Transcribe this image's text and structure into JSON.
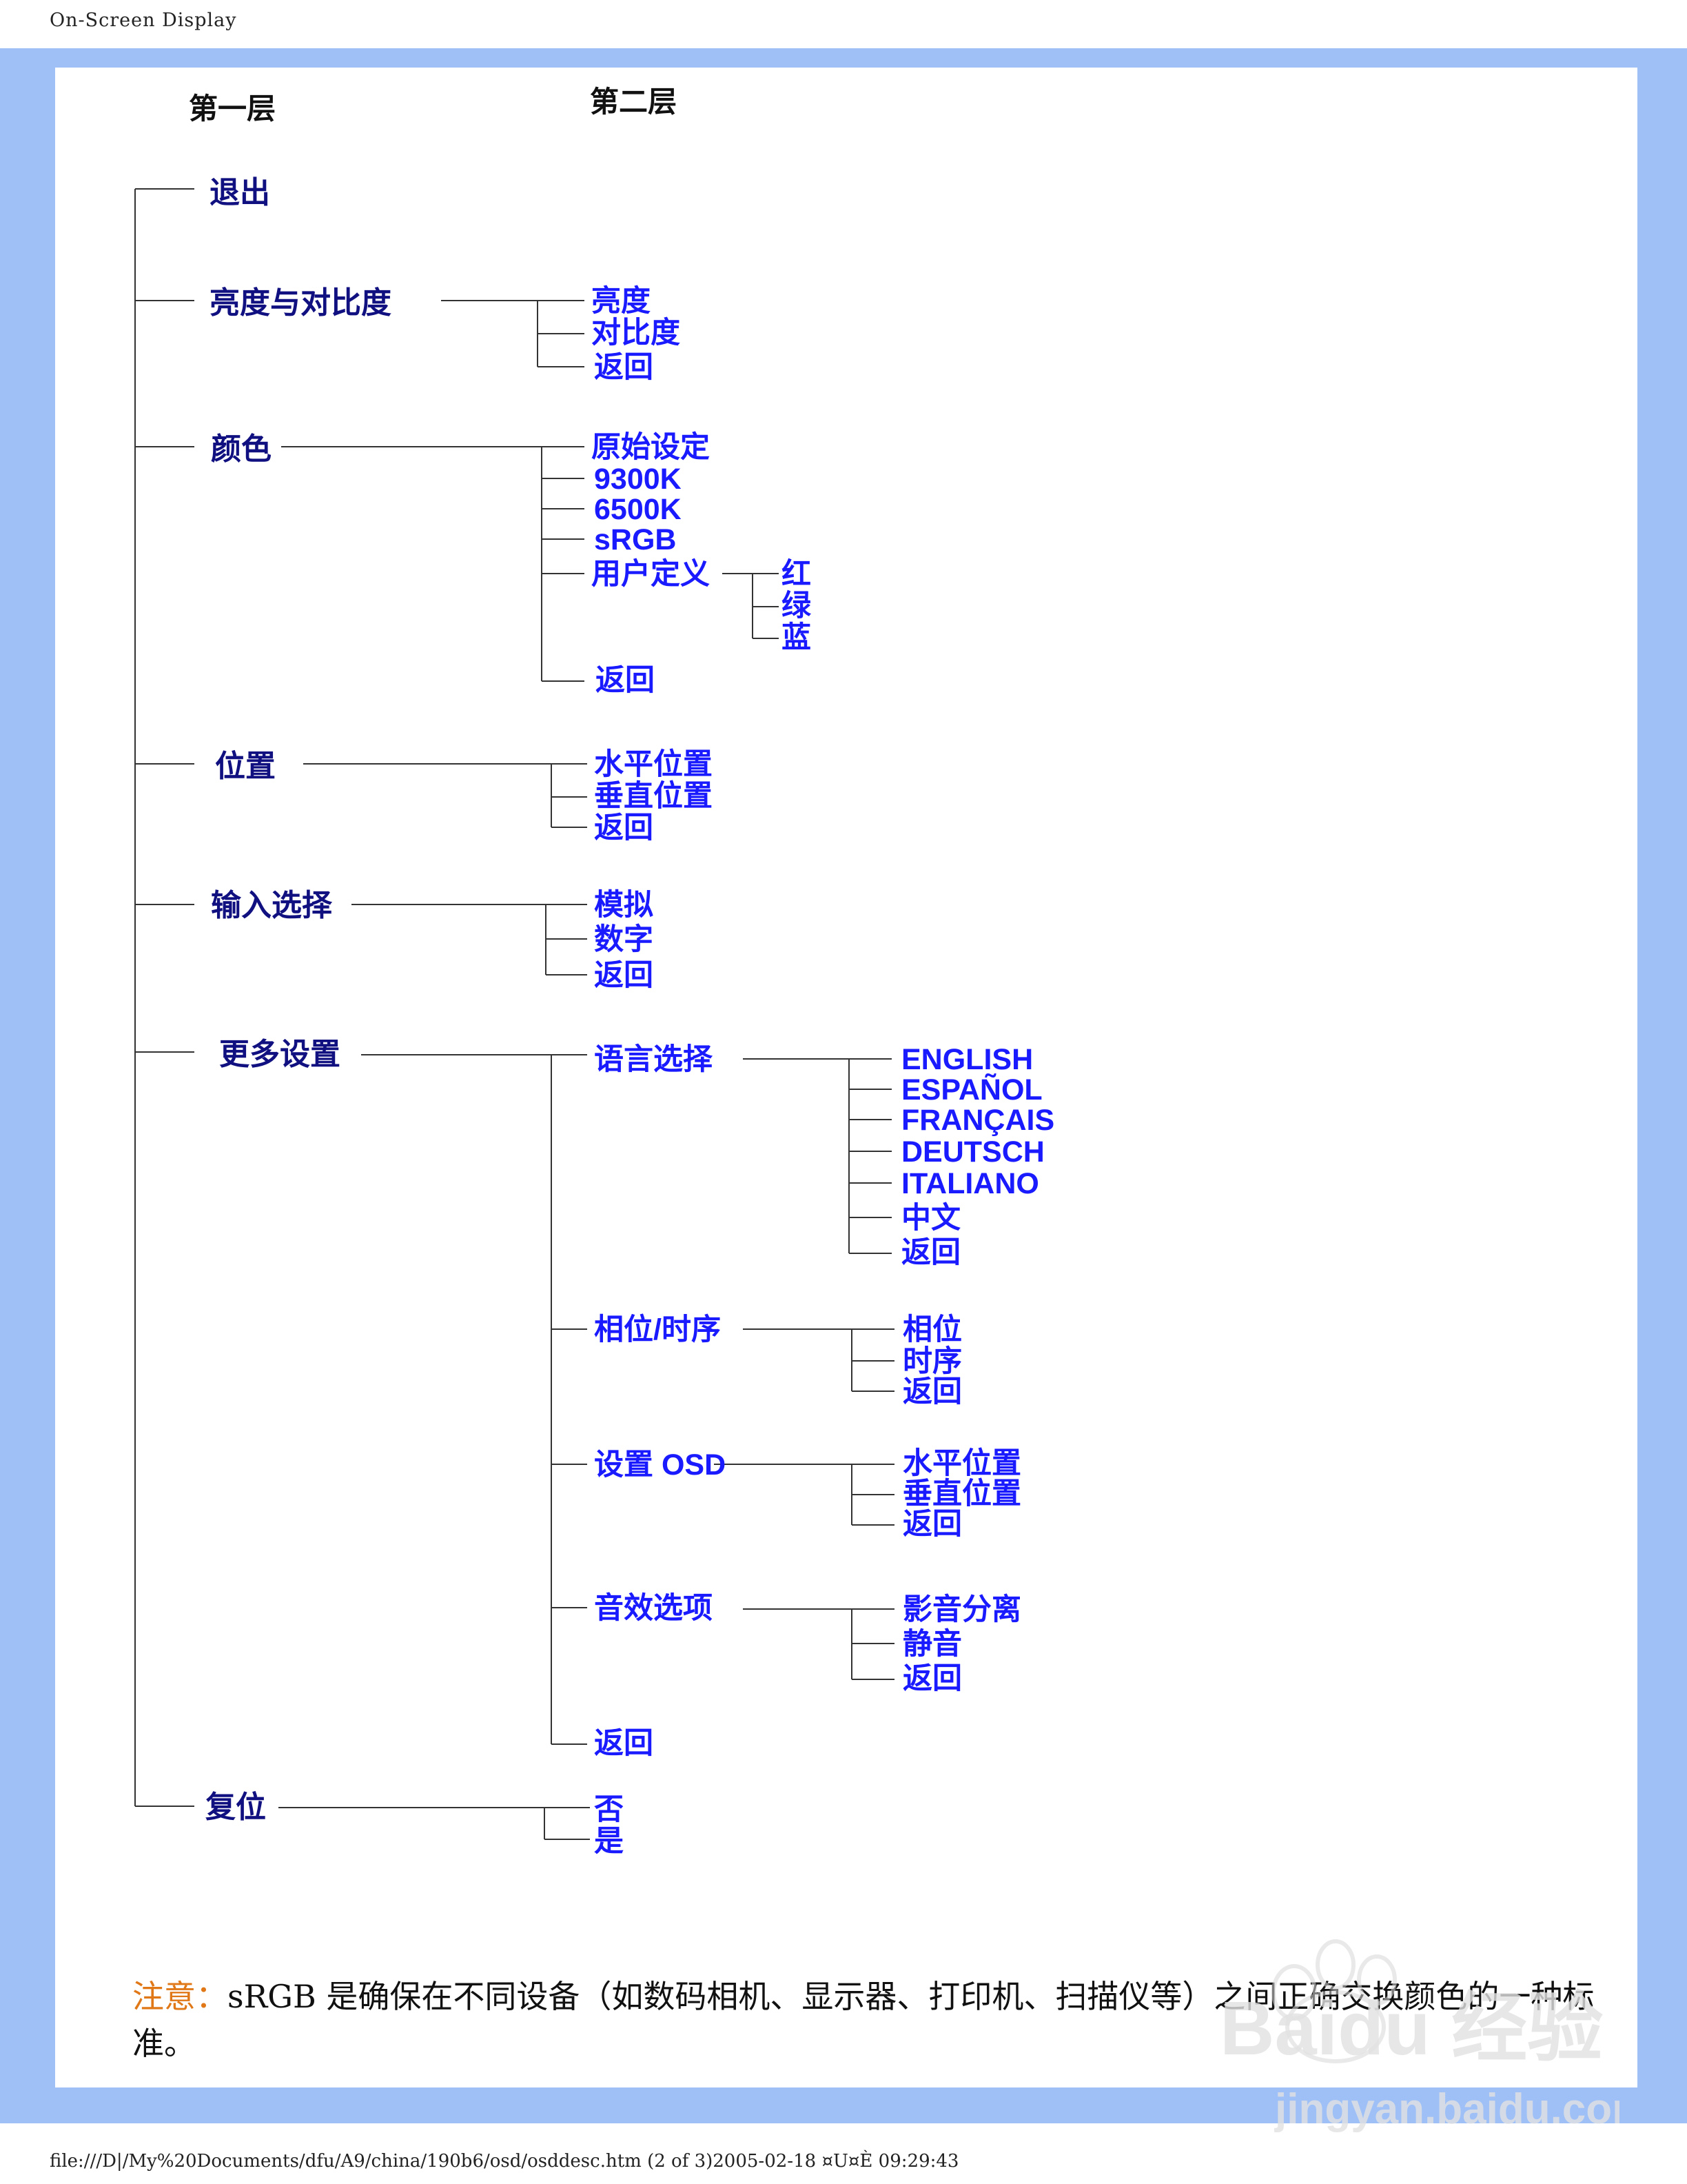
{
  "page": {
    "header": "On-Screen Display",
    "footer": "file:///D|/My%20Documents/dfu/A9/china/190b6/osd/osddesc.htm (2 of 3)2005-02-18 ¤U¤È 09:29:43"
  },
  "columns": {
    "level1": "第一层",
    "level2": "第二层"
  },
  "level1_items": [
    "退出",
    "亮度与对比度",
    "颜色",
    "位置",
    "输入选择",
    "更多设置",
    "复位"
  ],
  "brightness_submenu": [
    "亮度",
    "对比度",
    "返回"
  ],
  "color_submenu": [
    "原始设定",
    "9300K",
    "6500K",
    "sRGB",
    "用户定义",
    "返回"
  ],
  "user_define_submenu": [
    "红",
    "绿",
    "蓝"
  ],
  "position_submenu": [
    "水平位置",
    "垂直位置",
    "返回"
  ],
  "input_submenu": [
    "模拟",
    "数字",
    "返回"
  ],
  "more_settings_submenu": [
    "语言选择",
    "相位/时序",
    "设置 OSD",
    "音效选项",
    "返回"
  ],
  "language_submenu": [
    "ENGLISH",
    "ESPAÑOL",
    "FRANÇAIS",
    "DEUTSCH",
    "ITALIANO",
    "中文",
    "返回"
  ],
  "phase_submenu": [
    "相位",
    "时序",
    "返回"
  ],
  "osd_submenu": [
    "水平位置",
    "垂直位置",
    "返回"
  ],
  "audio_submenu": [
    "影音分离",
    "静音",
    "返回"
  ],
  "reset_submenu": [
    "否",
    "是"
  ],
  "note": {
    "label": "注意：",
    "text": "sRGB 是确保在不同设备（如数码相机、显示器、打印机、扫描仪等）之间正确交换颜色的一种标准。"
  },
  "watermark": {
    "text": "Baidu 经验",
    "url_text": "jingyan.baidu.com"
  },
  "colors": {
    "band": "#9ec0f7",
    "level1_text": "#101080",
    "level2_text": "#1a1aff",
    "note_label": "#e07818"
  }
}
